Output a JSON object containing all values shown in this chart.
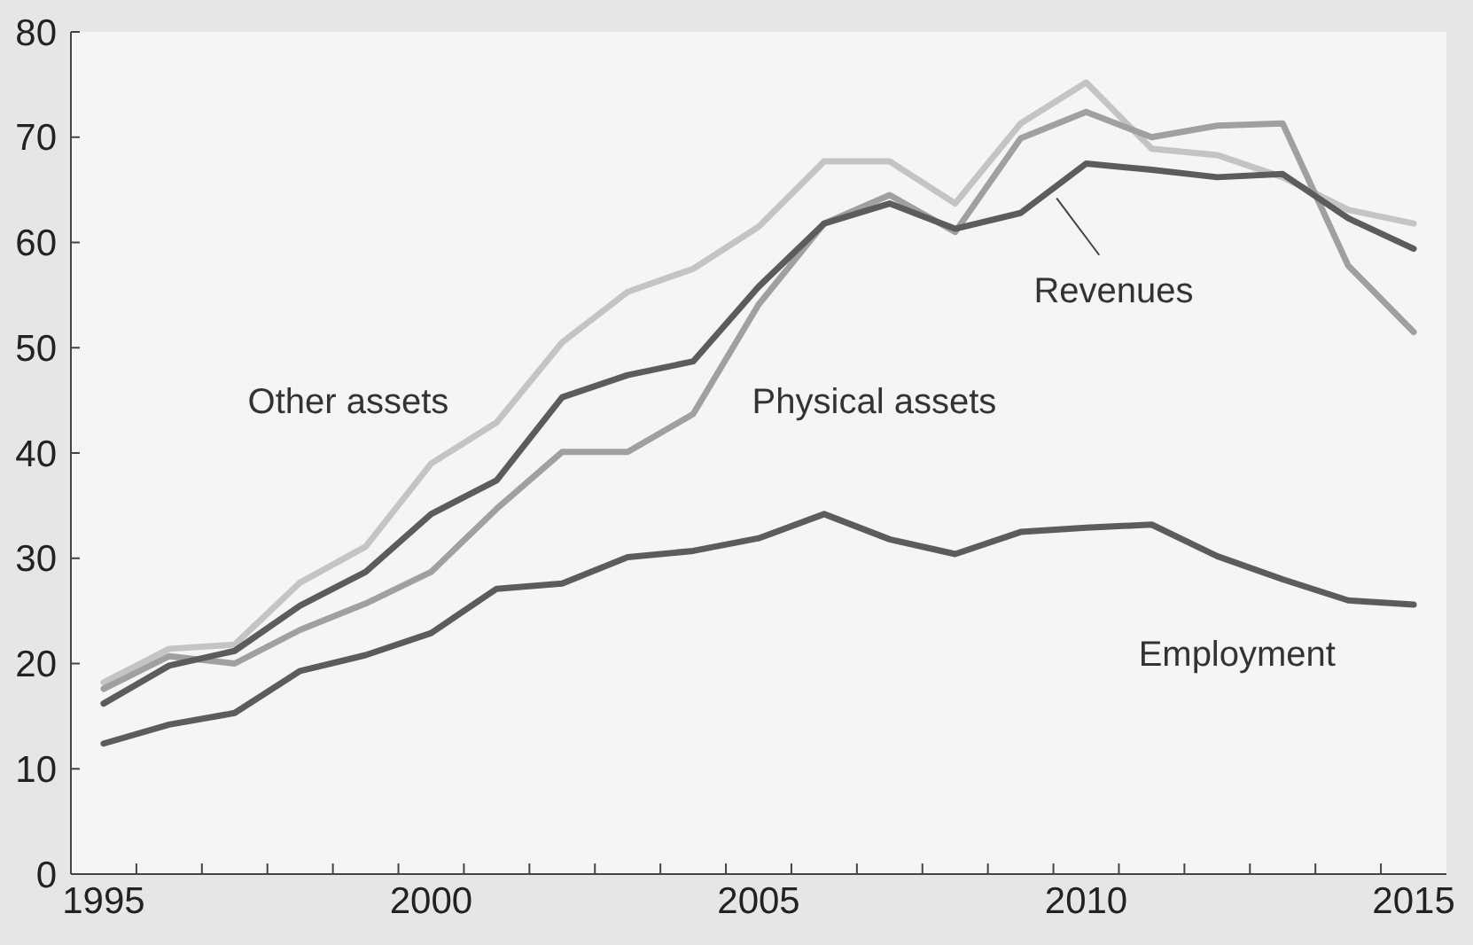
{
  "chart_data": {
    "type": "line",
    "x": [
      1995,
      1996,
      1997,
      1998,
      1999,
      2000,
      2001,
      2002,
      2003,
      2004,
      2005,
      2006,
      2007,
      2008,
      2009,
      2010,
      2011,
      2012,
      2013,
      2014,
      2015
    ],
    "xlim": [
      1994.5,
      2015.5
    ],
    "xticks": [
      {
        "value": 1995,
        "label": "1995"
      },
      {
        "value": 2000,
        "label": "2000"
      },
      {
        "value": 2005,
        "label": "2005"
      },
      {
        "value": 2010,
        "label": "2010"
      },
      {
        "value": 2015,
        "label": "2015"
      },
      {
        "value": 1995.5,
        "label": null
      },
      {
        "value": 1996.5,
        "label": null
      },
      {
        "value": 1997.5,
        "label": null
      },
      {
        "value": 1998.5,
        "label": null
      },
      {
        "value": 1999.5,
        "label": null
      },
      {
        "value": 2000.5,
        "label": null
      },
      {
        "value": 2001.5,
        "label": null
      },
      {
        "value": 2002.5,
        "label": null
      },
      {
        "value": 2003.5,
        "label": null
      },
      {
        "value": 2004.5,
        "label": null
      },
      {
        "value": 2005.5,
        "label": null
      },
      {
        "value": 2006.5,
        "label": null
      },
      {
        "value": 2007.5,
        "label": null
      },
      {
        "value": 2008.5,
        "label": null
      },
      {
        "value": 2009.5,
        "label": null
      },
      {
        "value": 2010.5,
        "label": null
      },
      {
        "value": 2011.5,
        "label": null
      },
      {
        "value": 2012.5,
        "label": null
      },
      {
        "value": 2013.5,
        "label": null
      },
      {
        "value": 2014.5,
        "label": null
      }
    ],
    "ylim": [
      0,
      80
    ],
    "yticks": [
      0,
      10,
      20,
      30,
      40,
      50,
      60,
      70,
      80
    ],
    "grid": false,
    "marker": "none",
    "line_style": "solid",
    "series": [
      {
        "name": "Other assets",
        "color": "#c4c4c4",
        "values": [
          18.2,
          21.4,
          21.8,
          27.7,
          31.1,
          39.0,
          42.9,
          50.5,
          55.3,
          57.5,
          61.5,
          67.7,
          67.7,
          63.7,
          71.3,
          75.2,
          68.9,
          68.3,
          66.2,
          63.1,
          61.8
        ]
      },
      {
        "name": "Physical assets",
        "color": "#a0a0a0",
        "values": [
          17.6,
          20.7,
          20.0,
          23.2,
          25.7,
          28.7,
          34.7,
          40.1,
          40.1,
          43.7,
          54.1,
          61.8,
          64.5,
          61.0,
          69.9,
          72.4,
          70.0,
          71.1,
          71.3,
          57.8,
          51.5
        ]
      },
      {
        "name": "Revenues",
        "color": "#5c5c5c",
        "values": [
          16.2,
          19.8,
          21.2,
          25.5,
          28.7,
          34.2,
          37.4,
          45.3,
          47.4,
          48.7,
          55.8,
          61.8,
          63.7,
          61.3,
          62.8,
          67.5,
          66.9,
          66.2,
          66.5,
          62.3,
          59.4
        ]
      },
      {
        "name": "Employment",
        "color": "#5c5c5c",
        "values": [
          12.4,
          14.2,
          15.3,
          19.3,
          20.8,
          22.9,
          27.1,
          27.6,
          30.1,
          30.7,
          31.9,
          34.2,
          31.8,
          30.4,
          32.5,
          32.9,
          33.2,
          30.2,
          28.0,
          26.0,
          25.6
        ]
      }
    ]
  }
}
